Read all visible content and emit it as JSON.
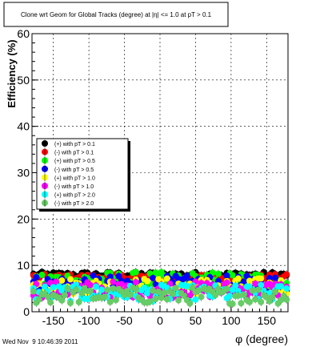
{
  "chart_data": {
    "type": "scatter",
    "title": "Clone wrt Geom for Global Tracks (degree) at |η| <= 1.0 at pT > 0.1",
    "xlabel": "φ (degree)",
    "ylabel": "Efficiency (%)",
    "xlim": [
      -180,
      180
    ],
    "ylim": [
      0,
      60
    ],
    "x_ticks": [
      -150,
      -100,
      -50,
      0,
      50,
      100,
      150
    ],
    "y_ticks": [
      0,
      10,
      20,
      30,
      40,
      50,
      60
    ],
    "grid": true,
    "legend_position": "middle-left",
    "series": [
      {
        "name": "(+) with pT > 0.1",
        "color": "#000000",
        "level": 8.0
      },
      {
        "name": "(-) with pT > 0.1",
        "color": "#ff0000",
        "level": 7.5
      },
      {
        "name": "(+) with pT > 0.5",
        "color": "#00ff00",
        "level": 6.8
      },
      {
        "name": "(-) with pT > 0.5",
        "color": "#0000ff",
        "level": 6.0
      },
      {
        "name": "(+) with pT > 1.0",
        "color": "#ffff00",
        "level": 5.5
      },
      {
        "name": "(-) with pT > 1.0",
        "color": "#ff00ff",
        "level": 4.8
      },
      {
        "name": "(+) with pT > 2.0",
        "color": "#00ffff",
        "level": 4.0
      },
      {
        "name": "(-) with pT > 2.0",
        "color": "#66cc66",
        "level": 3.5
      }
    ]
  },
  "timestamp": "Wed Nov  9 10:46:39 2011"
}
